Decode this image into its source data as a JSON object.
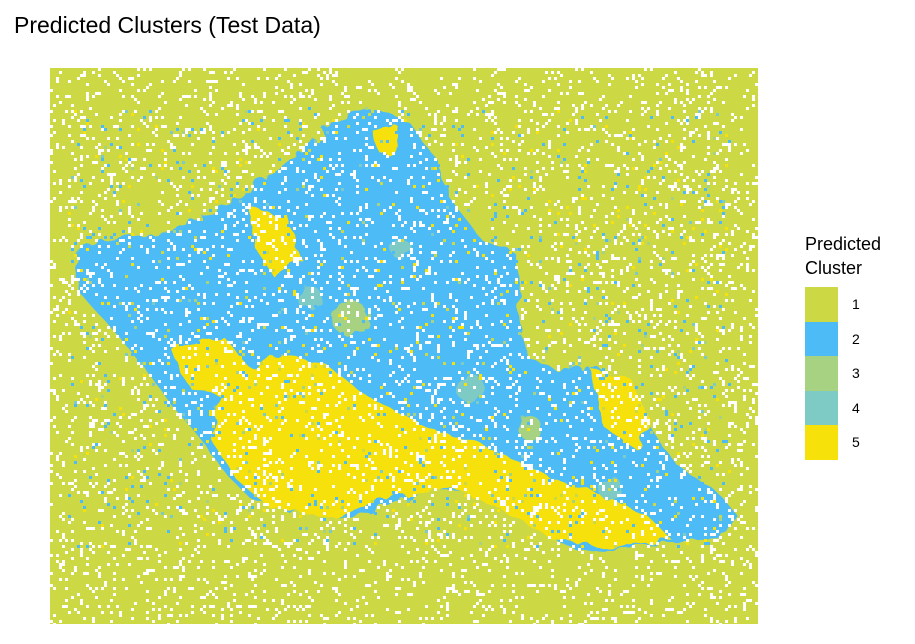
{
  "title": "Predicted Clusters (Test Data)",
  "legend": {
    "title_line1": "Predicted",
    "title_line2": "Cluster",
    "items": [
      {
        "label": "1",
        "color": "#CDD845"
      },
      {
        "label": "2",
        "color": "#4DBCF6"
      },
      {
        "label": "3",
        "color": "#A6D281"
      },
      {
        "label": "4",
        "color": "#7ECAC4"
      },
      {
        "label": "5",
        "color": "#F6E10A"
      }
    ]
  },
  "map": {
    "background_cluster": "1",
    "missing_color": "#FFFFFF",
    "description": "Raster of predicted clusters over the island of Oahu"
  }
}
